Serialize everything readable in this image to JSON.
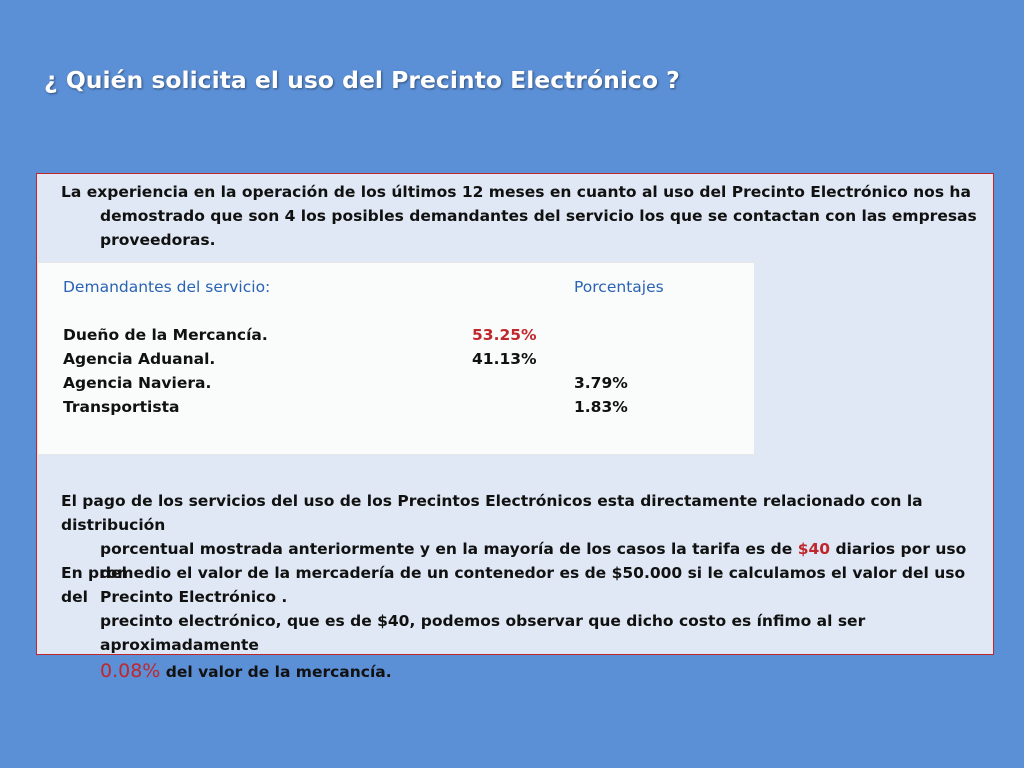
{
  "title": "¿ Quién solicita el uso del Precinto Electrónico ?",
  "intro": {
    "line1": "La experiencia en la operación de los últimos 12 meses en cuanto al uso del Precinto Electrónico nos ha",
    "line2": "demostrado que son 4 los posibles demandantes del servicio los que se contactan con las empresas",
    "line3": "proveedoras."
  },
  "table": {
    "header_left": "Demandantes del servicio:",
    "header_right": "Porcentajes",
    "rows": [
      {
        "name": "Dueño de la Mercancía.",
        "value": "53.25%"
      },
      {
        "name": "Agencia Aduanal.",
        "value": "41.13%"
      },
      {
        "name": "Agencia Naviera.",
        "value": "3.79%"
      },
      {
        "name": "Transportista",
        "value": "1.83%"
      }
    ]
  },
  "payment": {
    "line1": "El pago de los servicios del uso de los Precintos Electrónicos esta directamente relacionado con la distribución",
    "line2_before": "porcentual mostrada anteriormente y en la mayoría de los casos la tarifa es de ",
    "line2_highlight": "$40",
    "line2_after": " diarios por uso del",
    "line3": "Precinto Electrónico ."
  },
  "average": {
    "line1": "En promedio el valor de la mercadería de un contenedor es de $50.000 si le calculamos el valor del uso del",
    "line2": "precinto electrónico, que es de $40, podemos observar que dicho costo es ínfimo al ser aproximadamente",
    "line3_highlight": "0.08%",
    "line3_after": " del valor de la mercancía."
  },
  "colors": {
    "background": "#5b8fd6",
    "panel": "#dfe8f4",
    "border": "#c0272d",
    "highlight": "#c0272d",
    "table_header": "#2a63b3"
  }
}
